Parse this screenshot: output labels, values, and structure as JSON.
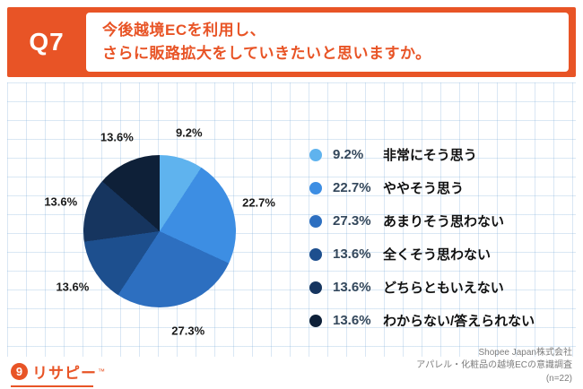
{
  "header": {
    "question_id": "Q7",
    "question_line1": "今後越境ECを利用し、",
    "question_line2": "さらに販路拡大をしていきたいと思いますか。"
  },
  "chart_data": {
    "type": "pie",
    "title": "今後越境ECを利用し、さらに販路拡大をしていきたいと思いますか。",
    "labels": [
      "非常にそう思う",
      "ややそう思う",
      "あまりそう思わない",
      "全くそう思わない",
      "どちらともいえない",
      "わからない/答えられない"
    ],
    "values": [
      9.2,
      22.7,
      27.3,
      13.6,
      13.6,
      13.6
    ],
    "value_labels": [
      "9.2%",
      "22.7%",
      "27.3%",
      "13.6%",
      "13.6%",
      "13.6%"
    ],
    "colors": [
      "#5FB3EE",
      "#3D8EE3",
      "#2D6FC0",
      "#1D4F8E",
      "#16355F",
      "#0E2038"
    ],
    "unit": "%",
    "start_angle_deg": 0,
    "direction": "clockwise",
    "legend_position": "right",
    "grid": true
  },
  "footer": {
    "logo_text": "リサピー",
    "logo_tm": "™",
    "source": [
      "Shopee Japan株式会社",
      "アパレル・化粧品の越境ECの意識調査",
      "(n=22)"
    ]
  },
  "colors": {
    "accent_orange": "#E85426",
    "grid_line": "#CFE2F1",
    "legend_percent_text": "#33475B",
    "label_text": "#111111",
    "source_text": "#7d7d7d"
  }
}
